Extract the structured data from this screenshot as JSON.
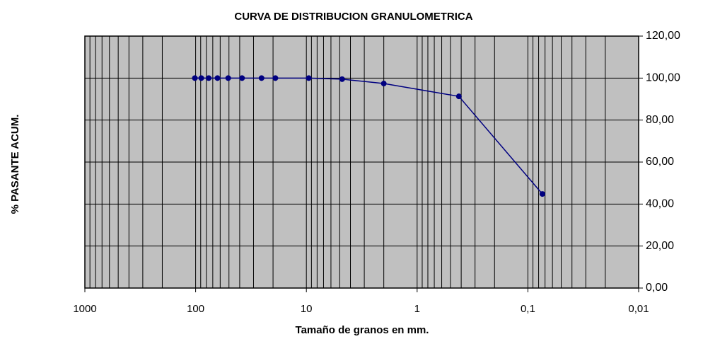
{
  "chart_data": {
    "type": "line",
    "title": "CURVA DE DISTRIBUCION GRANULOMETRICA",
    "x_label": "Tamaño de granos en mm.",
    "y_label": "% PASANTE ACUM.",
    "x": [
      101.6,
      88.9,
      76.2,
      63.5,
      50.8,
      38.1,
      25.4,
      19.05,
      9.525,
      4.76,
      2.0,
      0.42,
      0.074
    ],
    "series": [
      {
        "color": "#000080",
        "values": [
          100,
          100,
          100,
          100,
          100,
          100,
          100,
          100,
          100,
          99.5,
          97.4,
          91.3,
          44.8
        ]
      }
    ],
    "x_log": true,
    "xlim": [
      1000,
      0.01
    ],
    "xticks": [
      1000,
      100,
      10,
      1,
      {
        "value": 0.1,
        "label": "0,1"
      },
      {
        "value": 0.01,
        "label": "0,01"
      }
    ],
    "ylim": [
      0,
      120
    ],
    "yticks": [
      {
        "value": 0,
        "label": "0,00"
      },
      {
        "value": 20,
        "label": "20,00"
      },
      {
        "value": 40,
        "label": "40,00"
      },
      {
        "value": 60,
        "label": "60,00"
      },
      {
        "value": 80,
        "label": "80,00"
      },
      {
        "value": 100,
        "label": "100,00"
      },
      {
        "value": 120,
        "label": "120,00"
      }
    ],
    "y_axis_side": "right",
    "grid": true,
    "plot_background": "#c0c0c0"
  }
}
